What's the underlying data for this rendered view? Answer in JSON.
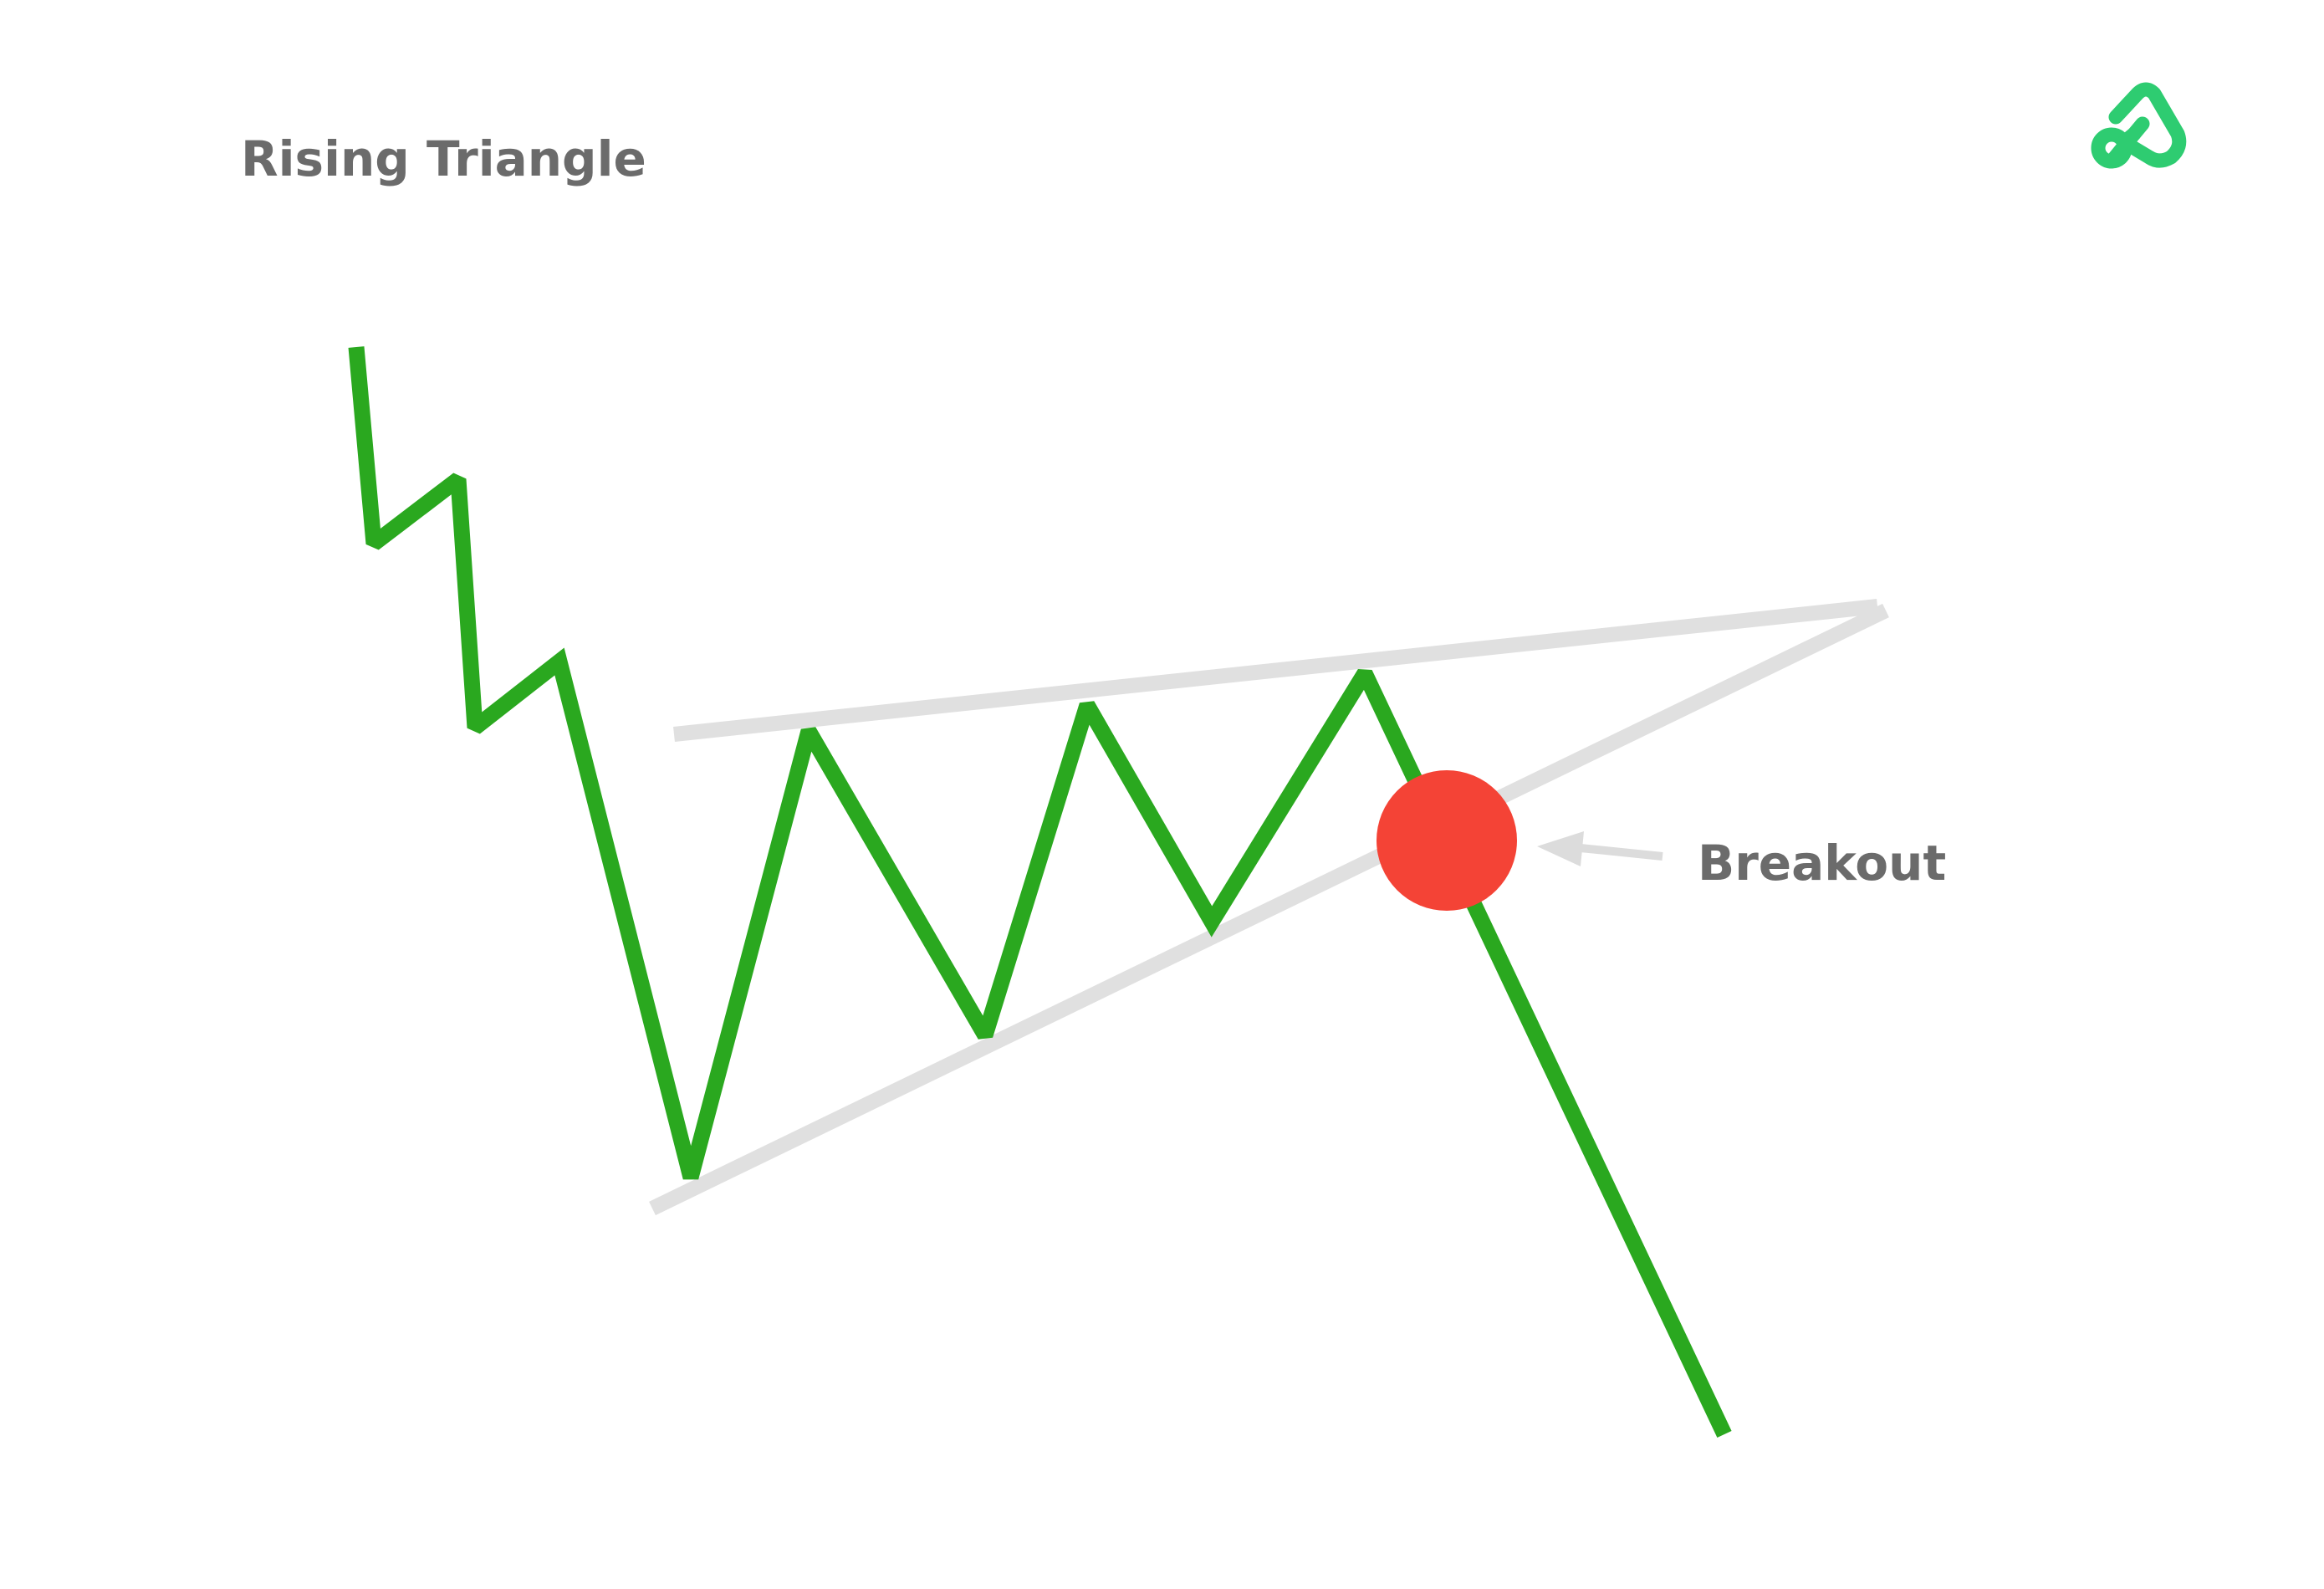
{
  "title": "Rising Triangle",
  "annotation_label": "Breakout",
  "icons": {
    "logo": "brand-logo-icon",
    "breakout_marker": "breakout-dot",
    "pointer": "arrow-left-icon"
  },
  "colors": {
    "background": "#ffffff",
    "title_text": "#6b6b6b",
    "label_text": "#6b6b6b",
    "price_line": "#2aa81f",
    "trend_lines": "#e0e0e0",
    "breakout_dot": "#f44336",
    "logo": "#2ecc71",
    "arrow": "#dcdcdc"
  }
}
